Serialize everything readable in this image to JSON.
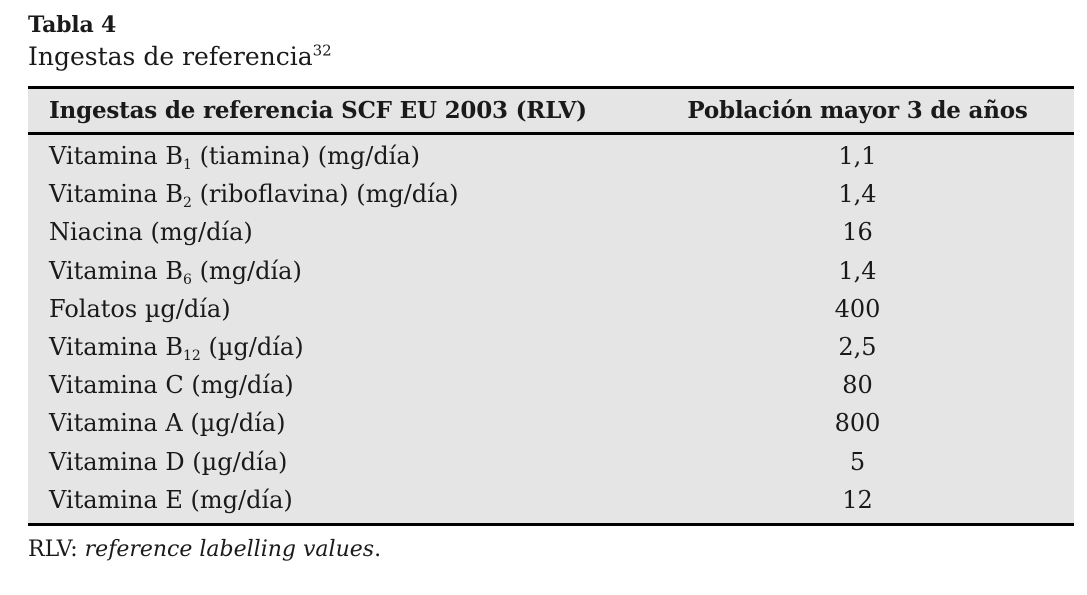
{
  "colors": {
    "table_background": "#e5e5e5",
    "rule": "#000000",
    "text": "#1a1a1a"
  },
  "caption": {
    "label": "Tabla 4",
    "title": "Ingestas de referencia",
    "reference_superscript": "32"
  },
  "table": {
    "columns": [
      "Ingestas de referencia SCF EU 2003 (RLV)",
      "Población mayor 3 de años"
    ],
    "rows": [
      {
        "pre": "Vitamina B",
        "sub": "1",
        "post": " (tiamina) (mg/día)",
        "value": "1,1"
      },
      {
        "pre": "Vitamina B",
        "sub": "2",
        "post": " (riboflavina) (mg/día)",
        "value": "1,4"
      },
      {
        "pre": "Niacina (mg/día)",
        "sub": "",
        "post": "",
        "value": "16"
      },
      {
        "pre": "Vitamina B",
        "sub": "6",
        "post": " (mg/día)",
        "value": "1,4"
      },
      {
        "pre": "Folatos µg/día)",
        "sub": "",
        "post": "",
        "value": "400"
      },
      {
        "pre": "Vitamina B",
        "sub": "12",
        "post": " (µg/día)",
        "value": "2,5"
      },
      {
        "pre": "Vitamina C (mg/día)",
        "sub": "",
        "post": "",
        "value": "80"
      },
      {
        "pre": "Vitamina A (µg/día)",
        "sub": "",
        "post": "",
        "value": "800"
      },
      {
        "pre": "Vitamina D (µg/día)",
        "sub": "",
        "post": "",
        "value": "5"
      },
      {
        "pre": "Vitamina E (mg/día)",
        "sub": "",
        "post": "",
        "value": "12"
      }
    ]
  },
  "footnote": {
    "abbreviation": "RLV: ",
    "definition": "reference labelling values",
    "terminator": "."
  }
}
